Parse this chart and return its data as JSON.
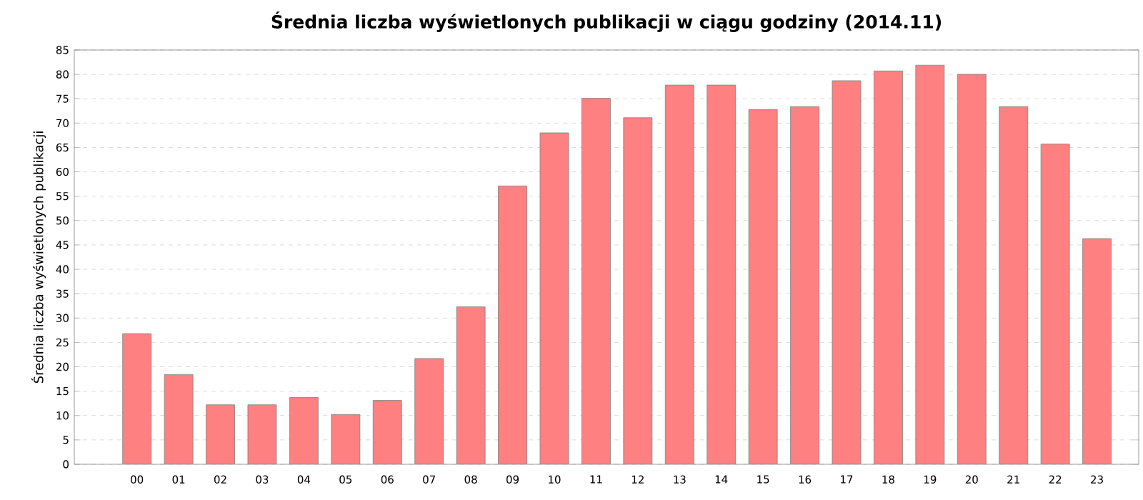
{
  "chart_data": {
    "type": "bar",
    "title": "Średnia liczba wyświetlonych publikacji w ciągu godziny (2014.11)",
    "ylabel": "Średnia liczba wyświetlonych publikacji",
    "categories": [
      "00",
      "01",
      "02",
      "03",
      "04",
      "05",
      "06",
      "07",
      "08",
      "09",
      "10",
      "11",
      "12",
      "13",
      "14",
      "15",
      "16",
      "17",
      "18",
      "19",
      "20",
      "21",
      "22",
      "23"
    ],
    "values": [
      26.8,
      18.4,
      12.2,
      12.2,
      13.7,
      10.2,
      13.1,
      21.7,
      32.3,
      57.1,
      68.0,
      75.1,
      71.1,
      77.8,
      77.8,
      72.8,
      73.4,
      78.7,
      80.7,
      81.9,
      80.0,
      73.4,
      65.7,
      46.3
    ],
    "color": "#ff8080",
    "ylim": [
      0,
      85
    ],
    "yticks": [
      0,
      5,
      10,
      15,
      20,
      25,
      30,
      35,
      40,
      45,
      50,
      55,
      60,
      65,
      70,
      75,
      80,
      85
    ],
    "grid": "y"
  }
}
